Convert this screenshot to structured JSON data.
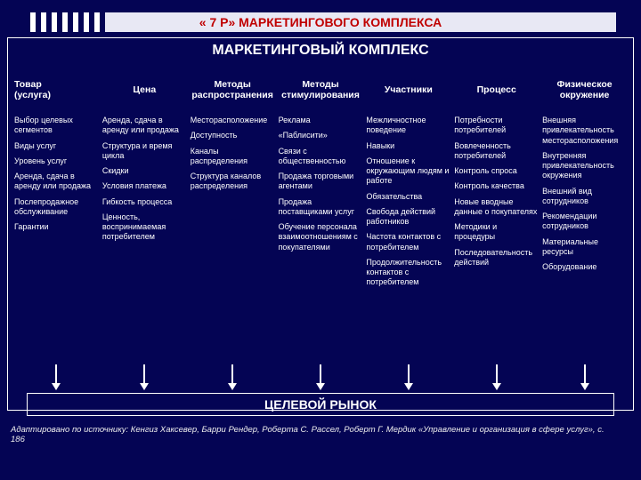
{
  "colors": {
    "bg": "#040454",
    "text": "#ffffff",
    "banner_bg": "#e8e8f4",
    "banner_text": "#c00000"
  },
  "title_banner": "« 7 Р» МАРКЕТИНГОВОГО КОМПЛЕКСА",
  "main_title": "МАРКЕТИНГОВЫЙ КОМПЛЕКС",
  "headers": {
    "c1a": "Товар",
    "c1b": "(услуга)",
    "c2": "Цена",
    "c3a": "Методы",
    "c3b": "распространения",
    "c4a": "Методы",
    "c4b": "стимулирования",
    "c5": "Участники",
    "c6": "Процесс",
    "c7a": "Физическое",
    "c7b": "окружение"
  },
  "col1": [
    "Выбор целевых сегментов",
    "Виды услуг",
    "Уровень услуг",
    "Аренда, сдача в аренду или продажа",
    "Послепродажное обслуживание",
    "Гарантии"
  ],
  "col2": [
    "Аренда, сдача в аренду или продажа",
    "Структура и время цикла",
    "Скидки",
    "Условия платежа",
    "Гибкость процесса",
    "Ценность, воспринимаемая потребителем"
  ],
  "col3": [
    "Месторасположение",
    "Доступность",
    "Каналы распределения",
    "Структура каналов распределения"
  ],
  "col4": [
    "Реклама",
    "«Паблисити»",
    "Связи с общественностью",
    "Продажа торговыми агентами",
    "Продажа поставщиками услуг",
    "Обучение персонала взаимоотношениям с покупателями"
  ],
  "col5": [
    "Межличностное поведение",
    "Навыки",
    "Отношение к окружающим людям и работе",
    "Обязательства",
    "Свобода действий работников",
    "Частота контактов с потребителем",
    "Продолжительность контактов с потребителем"
  ],
  "col6": [
    "Потребности потребителей",
    "Вовлеченность потребителей",
    "Контроль спроса",
    "Контроль качества",
    "Новые вводные данные о покупателях",
    "Методики и процедуры",
    "Последовательность действий"
  ],
  "col7": [
    "Внешняя привлекательность месторасположения",
    "Внутренняя привлекательность окружения",
    "Внешний вид сотрудников",
    "Рекомендации сотрудников",
    "Материальные ресурсы",
    "Оборудование"
  ],
  "target_title": "ЦЕЛЕВОЙ РЫНОК",
  "footer": "Адаптировано по источнику: Кенгиз Хаксевер, Барри Рендер, Роберта С. Рассел, Роберт Г. Мердик «Управление и организация в сфере услуг», с. 186"
}
